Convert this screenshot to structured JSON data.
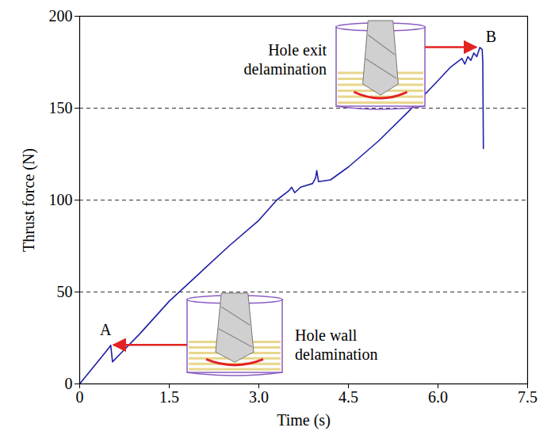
{
  "chart_data": {
    "type": "line",
    "x_label": "Time (s)",
    "y_label": "Thrust force (N)",
    "xlim": [
      0,
      7.5
    ],
    "ylim": [
      0,
      200
    ],
    "xticks": [
      0,
      1.5,
      {
        "value": 3,
        "label": "3.0"
      },
      4.5,
      {
        "value": 6,
        "label": "6.0"
      },
      7.5
    ],
    "yticks": [
      0,
      50,
      100,
      150,
      200
    ],
    "grid": true,
    "color": "#1f1fa8",
    "x": [
      0,
      0.1,
      0.2,
      0.3,
      0.4,
      0.5,
      0.52,
      0.55,
      0.7,
      1.0,
      1.5,
      2.0,
      2.5,
      3.0,
      3.3,
      3.5,
      3.55,
      3.6,
      3.7,
      3.9,
      3.95,
      3.97,
      4.0,
      4.2,
      4.5,
      5.0,
      5.5,
      6.0,
      6.2,
      6.4,
      6.45,
      6.5,
      6.55,
      6.6,
      6.65,
      6.7,
      6.74,
      6.75,
      6.76
    ],
    "values": [
      0,
      4,
      8,
      12,
      16,
      20,
      21,
      12,
      17,
      27,
      45,
      60,
      75,
      89,
      100,
      105,
      107,
      104,
      107,
      109,
      112,
      116,
      110,
      111,
      118,
      132,
      148,
      165,
      172,
      177,
      174,
      178,
      176,
      180,
      178,
      183,
      182,
      175,
      128
    ],
    "annotations": [
      {
        "label": "A",
        "text": "Hole wall delamination",
        "x": 0.52,
        "y": 21
      },
      {
        "label": "B",
        "text": "Hole exit delamination",
        "x": 6.7,
        "y": 183
      }
    ]
  }
}
